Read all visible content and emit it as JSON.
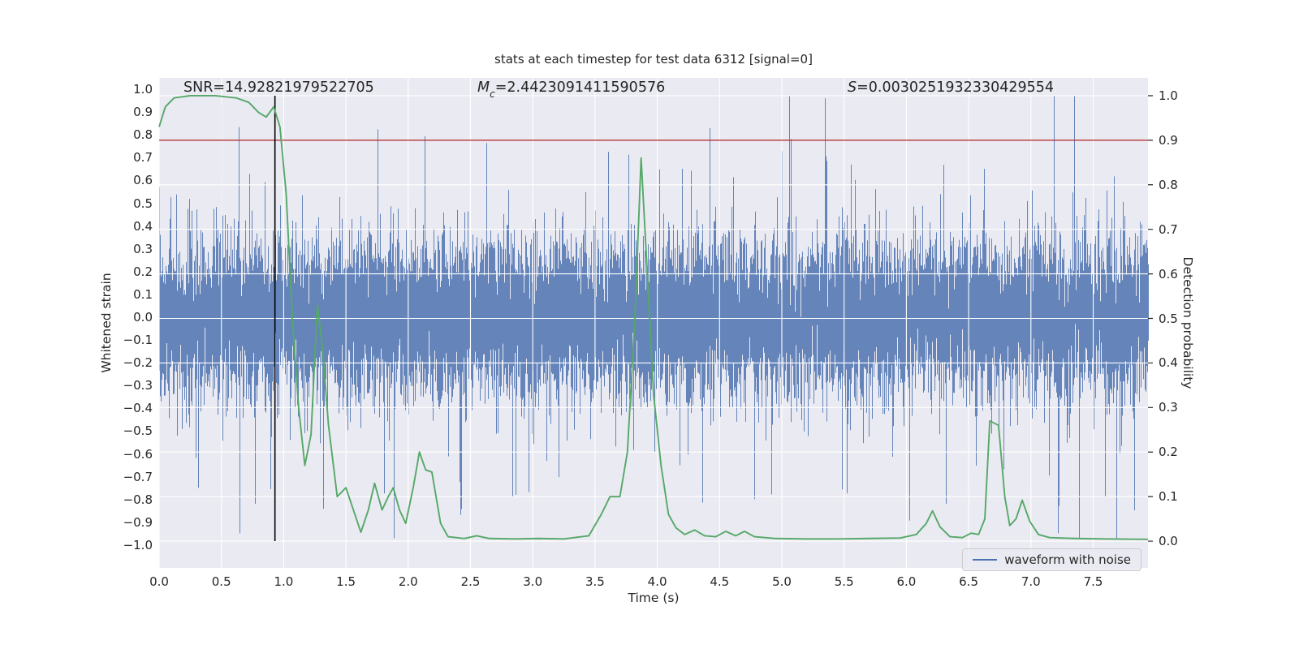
{
  "title": "stats at each timestep for test data 6312 [signal=0]",
  "annotations": {
    "snr": "SNR=14.92821979522705",
    "mc_symbol": "M",
    "mc_sub": "c",
    "mc_value": "=2.4423091411590576",
    "s_symbol": "S",
    "s_value": "=0.0030251932330429554"
  },
  "legend": {
    "label": "waveform with noise"
  },
  "chart_data": {
    "type": "line",
    "title": "stats at each timestep for test data 6312 [signal=0]",
    "xlabel": "Time (s)",
    "ylabel_left": "Whitened strain",
    "ylabel_right": "Detection probability",
    "xlim": [
      0,
      7.94
    ],
    "ylim_left": [
      -1.1,
      1.05
    ],
    "ylim_right": [
      -0.06,
      1.04
    ],
    "background": "#eaeaf2",
    "grid_color": "#ffffff",
    "grid": "on",
    "legend_position": "lower right",
    "stats": {
      "SNR": 14.92821979522705,
      "Mc": 2.4423091411590576,
      "S": 0.0030251932330429554
    },
    "x_ticks": [
      {
        "v": 0.0,
        "label": "0.0"
      },
      {
        "v": 0.5,
        "label": "0.5"
      },
      {
        "v": 1.0,
        "label": "1.0"
      },
      {
        "v": 1.5,
        "label": "1.5"
      },
      {
        "v": 2.0,
        "label": "2.0"
      },
      {
        "v": 2.5,
        "label": "2.5"
      },
      {
        "v": 3.0,
        "label": "3.0"
      },
      {
        "v": 3.5,
        "label": "3.5"
      },
      {
        "v": 4.0,
        "label": "4.0"
      },
      {
        "v": 4.5,
        "label": "4.5"
      },
      {
        "v": 5.0,
        "label": "5.0"
      },
      {
        "v": 5.5,
        "label": "5.5"
      },
      {
        "v": 6.0,
        "label": "6.0"
      },
      {
        "v": 6.5,
        "label": "6.5"
      },
      {
        "v": 7.0,
        "label": "7.0"
      },
      {
        "v": 7.5,
        "label": "7.5"
      }
    ],
    "y_ticks_left": [
      {
        "v": 1.0,
        "label": "1.0"
      },
      {
        "v": 0.9,
        "label": "0.9"
      },
      {
        "v": 0.8,
        "label": "0.8"
      },
      {
        "v": 0.7,
        "label": "0.7"
      },
      {
        "v": 0.6,
        "label": "0.6"
      },
      {
        "v": 0.5,
        "label": "0.5"
      },
      {
        "v": 0.4,
        "label": "0.4"
      },
      {
        "v": 0.3,
        "label": "0.3"
      },
      {
        "v": 0.2,
        "label": "0.2"
      },
      {
        "v": 0.1,
        "label": "0.1"
      },
      {
        "v": 0.0,
        "label": "0.0"
      },
      {
        "v": -0.1,
        "label": "−0.1"
      },
      {
        "v": -0.2,
        "label": "−0.2"
      },
      {
        "v": -0.3,
        "label": "−0.3"
      },
      {
        "v": -0.4,
        "label": "−0.4"
      },
      {
        "v": -0.5,
        "label": "−0.5"
      },
      {
        "v": -0.6,
        "label": "−0.6"
      },
      {
        "v": -0.7,
        "label": "−0.7"
      },
      {
        "v": -0.8,
        "label": "−0.8"
      },
      {
        "v": -0.9,
        "label": "−0.9"
      },
      {
        "v": -1.0,
        "label": "−1.0"
      }
    ],
    "y_ticks_right": [
      {
        "v": 0.0,
        "label": "0.0"
      },
      {
        "v": 0.1,
        "label": "0.1"
      },
      {
        "v": 0.2,
        "label": "0.2"
      },
      {
        "v": 0.3,
        "label": "0.3"
      },
      {
        "v": 0.4,
        "label": "0.4"
      },
      {
        "v": 0.5,
        "label": "0.5"
      },
      {
        "v": 0.6,
        "label": "0.6"
      },
      {
        "v": 0.7,
        "label": "0.7"
      },
      {
        "v": 0.8,
        "label": "0.8"
      },
      {
        "v": 0.9,
        "label": "0.9"
      },
      {
        "v": 1.0,
        "label": "1.0"
      }
    ],
    "threshold": {
      "axis": "right",
      "value": 0.9,
      "color": "#b22222"
    },
    "event_vline": {
      "x": 0.93,
      "axis": "right",
      "from": 0.0,
      "to": 1.0,
      "color": "#000000"
    },
    "series": [
      {
        "name": "waveform with noise",
        "type": "noise",
        "axis": "left",
        "color": "#4c72b0",
        "description": "dense whitened strain noise spanning full time range, solid core about ±0.25 with spikes to ±0.95",
        "samples_per_column": 12,
        "sigma": 0.16,
        "spike_fraction": 0.022,
        "spike_scale_min": 1.8,
        "spike_scale_max": 3.4,
        "clip": 0.97,
        "seed": 6312
      },
      {
        "name": "detection probability",
        "type": "line",
        "axis": "right",
        "color": "#55a868",
        "points": [
          [
            0.0,
            0.93
          ],
          [
            0.05,
            0.975
          ],
          [
            0.12,
            0.995
          ],
          [
            0.25,
            1.0
          ],
          [
            0.45,
            1.0
          ],
          [
            0.62,
            0.995
          ],
          [
            0.72,
            0.985
          ],
          [
            0.8,
            0.962
          ],
          [
            0.86,
            0.952
          ],
          [
            0.92,
            0.975
          ],
          [
            0.97,
            0.93
          ],
          [
            1.02,
            0.78
          ],
          [
            1.07,
            0.5
          ],
          [
            1.12,
            0.3
          ],
          [
            1.17,
            0.17
          ],
          [
            1.22,
            0.24
          ],
          [
            1.27,
            0.53
          ],
          [
            1.31,
            0.44
          ],
          [
            1.36,
            0.26
          ],
          [
            1.43,
            0.1
          ],
          [
            1.5,
            0.12
          ],
          [
            1.56,
            0.07
          ],
          [
            1.62,
            0.02
          ],
          [
            1.68,
            0.07
          ],
          [
            1.73,
            0.13
          ],
          [
            1.79,
            0.07
          ],
          [
            1.84,
            0.1
          ],
          [
            1.88,
            0.12
          ],
          [
            1.93,
            0.07
          ],
          [
            1.98,
            0.04
          ],
          [
            2.04,
            0.12
          ],
          [
            2.09,
            0.2
          ],
          [
            2.14,
            0.16
          ],
          [
            2.19,
            0.155
          ],
          [
            2.26,
            0.04
          ],
          [
            2.32,
            0.01
          ],
          [
            2.45,
            0.006
          ],
          [
            2.55,
            0.012
          ],
          [
            2.65,
            0.006
          ],
          [
            2.85,
            0.005
          ],
          [
            3.05,
            0.006
          ],
          [
            3.25,
            0.005
          ],
          [
            3.45,
            0.012
          ],
          [
            3.55,
            0.06
          ],
          [
            3.62,
            0.1
          ],
          [
            3.7,
            0.1
          ],
          [
            3.76,
            0.2
          ],
          [
            3.82,
            0.5
          ],
          [
            3.87,
            0.86
          ],
          [
            3.92,
            0.6
          ],
          [
            3.97,
            0.33
          ],
          [
            4.03,
            0.17
          ],
          [
            4.09,
            0.06
          ],
          [
            4.15,
            0.03
          ],
          [
            4.22,
            0.015
          ],
          [
            4.3,
            0.025
          ],
          [
            4.38,
            0.012
          ],
          [
            4.47,
            0.01
          ],
          [
            4.55,
            0.022
          ],
          [
            4.63,
            0.012
          ],
          [
            4.7,
            0.022
          ],
          [
            4.78,
            0.01
          ],
          [
            4.95,
            0.006
          ],
          [
            5.2,
            0.005
          ],
          [
            5.45,
            0.005
          ],
          [
            5.7,
            0.006
          ],
          [
            5.95,
            0.007
          ],
          [
            6.08,
            0.015
          ],
          [
            6.16,
            0.04
          ],
          [
            6.21,
            0.068
          ],
          [
            6.27,
            0.032
          ],
          [
            6.35,
            0.01
          ],
          [
            6.45,
            0.008
          ],
          [
            6.52,
            0.018
          ],
          [
            6.58,
            0.015
          ],
          [
            6.63,
            0.05
          ],
          [
            6.67,
            0.27
          ],
          [
            6.74,
            0.26
          ],
          [
            6.79,
            0.1
          ],
          [
            6.83,
            0.035
          ],
          [
            6.88,
            0.05
          ],
          [
            6.93,
            0.092
          ],
          [
            6.99,
            0.045
          ],
          [
            7.06,
            0.015
          ],
          [
            7.15,
            0.008
          ],
          [
            7.35,
            0.006
          ],
          [
            7.6,
            0.005
          ],
          [
            7.94,
            0.004
          ]
        ]
      }
    ]
  }
}
